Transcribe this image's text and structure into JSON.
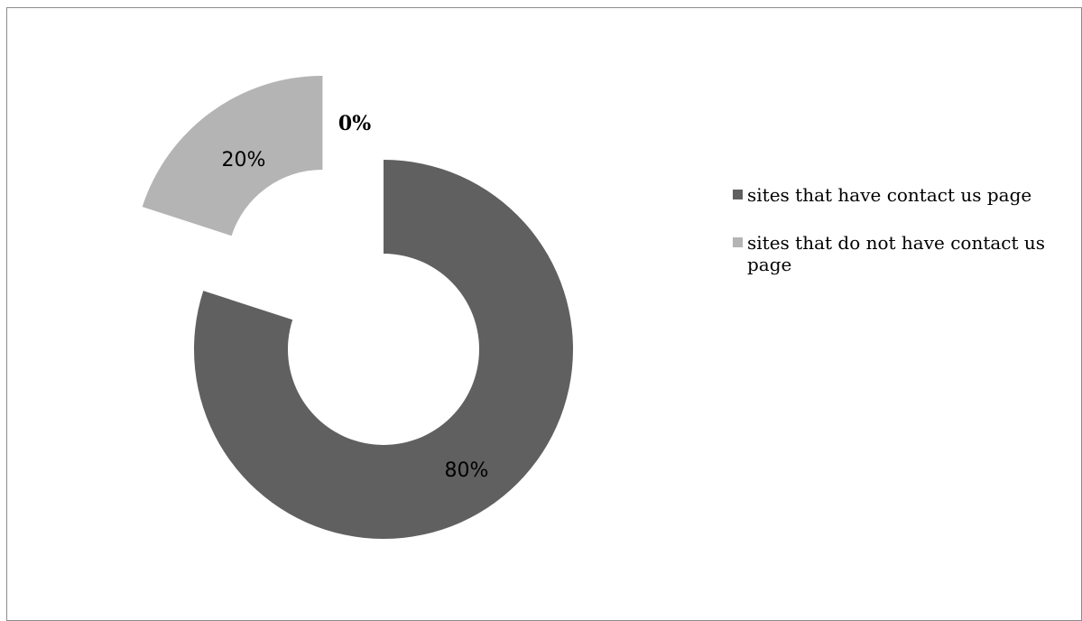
{
  "chart_data": {
    "type": "pie",
    "style": "doughnut",
    "legend_position": "right",
    "series": [
      {
        "name": "sites that have contact us page",
        "value": 80,
        "label": "80%",
        "color": "#606060"
      },
      {
        "name": "sites that do not have contact us page",
        "value": 20,
        "label": "20%",
        "color": "#b4b4b4"
      },
      {
        "name": "",
        "value": 0,
        "label": "0%",
        "color": "#ffffff"
      }
    ]
  },
  "legend": {
    "items": [
      {
        "label": "sites that have contact us page",
        "color": "#606060"
      },
      {
        "label": "sites that do not have contact us page",
        "color": "#b4b4b4"
      }
    ]
  }
}
